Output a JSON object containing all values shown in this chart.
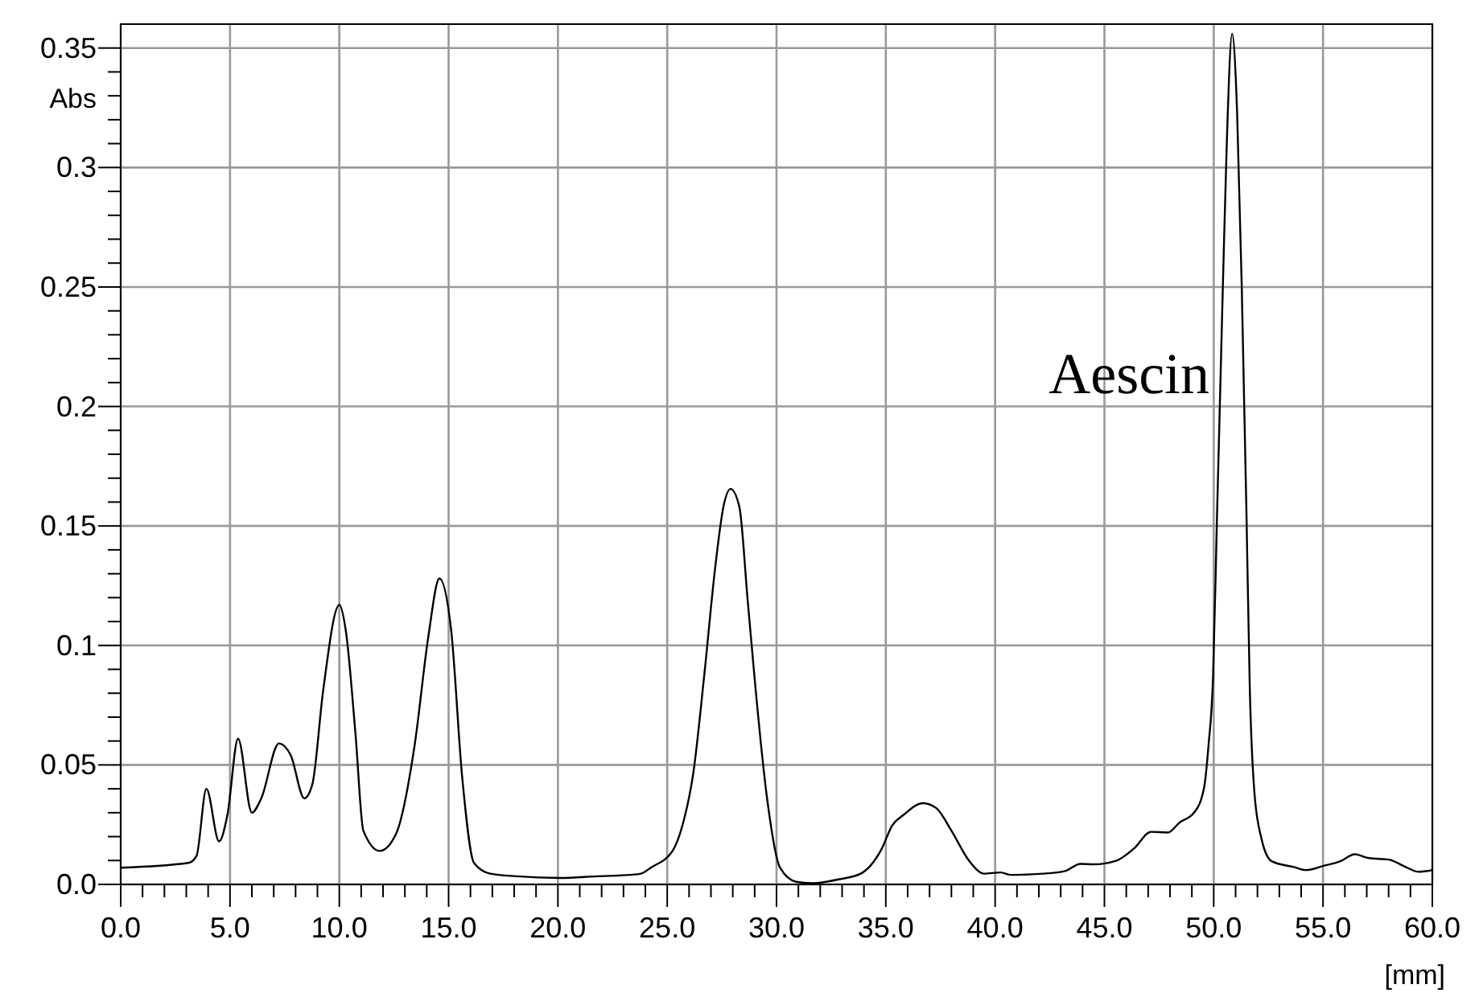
{
  "chart_data": {
    "type": "line",
    "xlabel": "[mm]",
    "ylabel": "Abs",
    "annotations": [
      "Aescin"
    ],
    "xlim": [
      0,
      60
    ],
    "ylim": [
      0,
      0.36
    ],
    "xticks": [
      {
        "value": 0,
        "label": "0.0"
      },
      {
        "value": 1,
        "label": null
      },
      {
        "value": 2,
        "label": null
      },
      {
        "value": 3,
        "label": null
      },
      {
        "value": 4,
        "label": null
      },
      {
        "value": 5,
        "label": "5.0"
      },
      {
        "value": 6,
        "label": null
      },
      {
        "value": 7,
        "label": null
      },
      {
        "value": 8,
        "label": null
      },
      {
        "value": 9,
        "label": null
      },
      {
        "value": 10,
        "label": "10.0"
      },
      {
        "value": 11,
        "label": null
      },
      {
        "value": 12,
        "label": null
      },
      {
        "value": 13,
        "label": null
      },
      {
        "value": 14,
        "label": null
      },
      {
        "value": 15,
        "label": "15.0"
      },
      {
        "value": 16,
        "label": null
      },
      {
        "value": 17,
        "label": null
      },
      {
        "value": 18,
        "label": null
      },
      {
        "value": 19,
        "label": null
      },
      {
        "value": 20,
        "label": "20.0"
      },
      {
        "value": 21,
        "label": null
      },
      {
        "value": 22,
        "label": null
      },
      {
        "value": 23,
        "label": null
      },
      {
        "value": 24,
        "label": null
      },
      {
        "value": 25,
        "label": "25.0"
      },
      {
        "value": 26,
        "label": null
      },
      {
        "value": 27,
        "label": null
      },
      {
        "value": 28,
        "label": null
      },
      {
        "value": 29,
        "label": null
      },
      {
        "value": 30,
        "label": "30.0"
      },
      {
        "value": 31,
        "label": null
      },
      {
        "value": 32,
        "label": null
      },
      {
        "value": 33,
        "label": null
      },
      {
        "value": 34,
        "label": null
      },
      {
        "value": 35,
        "label": "35.0"
      },
      {
        "value": 36,
        "label": null
      },
      {
        "value": 37,
        "label": null
      },
      {
        "value": 38,
        "label": null
      },
      {
        "value": 39,
        "label": null
      },
      {
        "value": 40,
        "label": "40.0"
      },
      {
        "value": 41,
        "label": null
      },
      {
        "value": 42,
        "label": null
      },
      {
        "value": 43,
        "label": null
      },
      {
        "value": 44,
        "label": null
      },
      {
        "value": 45,
        "label": "45.0"
      },
      {
        "value": 46,
        "label": null
      },
      {
        "value": 47,
        "label": null
      },
      {
        "value": 48,
        "label": null
      },
      {
        "value": 49,
        "label": null
      },
      {
        "value": 50,
        "label": "50.0"
      },
      {
        "value": 51,
        "label": null
      },
      {
        "value": 52,
        "label": null
      },
      {
        "value": 53,
        "label": null
      },
      {
        "value": 54,
        "label": null
      },
      {
        "value": 55,
        "label": "55.0"
      },
      {
        "value": 56,
        "label": null
      },
      {
        "value": 57,
        "label": null
      },
      {
        "value": 58,
        "label": null
      },
      {
        "value": 59,
        "label": null
      },
      {
        "value": 60,
        "label": "60.0"
      }
    ],
    "yticks": [
      {
        "value": 0,
        "label": "0.0"
      },
      {
        "value": 0.01,
        "label": null
      },
      {
        "value": 0.02,
        "label": null
      },
      {
        "value": 0.03,
        "label": null
      },
      {
        "value": 0.04,
        "label": null
      },
      0.05,
      {
        "value": 0.06,
        "label": null
      },
      {
        "value": 0.07,
        "label": null
      },
      {
        "value": 0.08,
        "label": null
      },
      {
        "value": 0.09,
        "label": null
      },
      0.1,
      {
        "value": 0.11,
        "label": null
      },
      {
        "value": 0.12,
        "label": null
      },
      {
        "value": 0.13,
        "label": null
      },
      {
        "value": 0.14,
        "label": null
      },
      0.15,
      {
        "value": 0.16,
        "label": null
      },
      {
        "value": 0.17,
        "label": null
      },
      {
        "value": 0.18,
        "label": null
      },
      {
        "value": 0.19,
        "label": null
      },
      0.2,
      {
        "value": 0.21,
        "label": null
      },
      {
        "value": 0.22,
        "label": null
      },
      {
        "value": 0.23,
        "label": null
      },
      {
        "value": 0.24,
        "label": null
      },
      0.25,
      {
        "value": 0.26,
        "label": null
      },
      {
        "value": 0.27,
        "label": null
      },
      {
        "value": 0.28,
        "label": null
      },
      {
        "value": 0.29,
        "label": null
      },
      0.3,
      {
        "value": 0.31,
        "label": null
      },
      {
        "value": 0.32,
        "label": null
      },
      {
        "value": 0.33,
        "label": null
      },
      {
        "value": 0.34,
        "label": null
      },
      0.35
    ],
    "grid": true,
    "marker": "none",
    "line_style": "solid",
    "series": [
      {
        "color": "#000000",
        "x": [
          0,
          3.1,
          3.47,
          3.92,
          4.5,
          4.88,
          5.37,
          6.0,
          6.43,
          7.24,
          7.78,
          8.4,
          8.77,
          9.26,
          10.0,
          10.3,
          10.74,
          11.1,
          11.85,
          12.59,
          13.45,
          14.07,
          14.58,
          15.12,
          15.62,
          16.16,
          16.9,
          18.1,
          20.1,
          21.8,
          23.3,
          23.8,
          24.25,
          25.25,
          25.7,
          26.2,
          26.7,
          27.2,
          27.57,
          27.9,
          28.3,
          28.68,
          29.05,
          29.54,
          30.16,
          30.9,
          31.6,
          32.9,
          33.85,
          34.8,
          35.3,
          35.8,
          36.7,
          37.3,
          38.0,
          38.8,
          39.5,
          40.25,
          40.7,
          42.2,
          43.2,
          43.9,
          44.5,
          45.56,
          46.35,
          47.13,
          47.9,
          48.45,
          49.1,
          49.55,
          49.76,
          49.97,
          50.15,
          50.42,
          50.6,
          50.84,
          51.07,
          51.28,
          51.5,
          51.65,
          51.86,
          52.18,
          52.65,
          53.7,
          54.22,
          55.0,
          55.8,
          56.45,
          57.1,
          58.0,
          58.8,
          59.35,
          60
        ],
        "values": [
          0.007,
          0.009,
          0.012,
          0.04,
          0.018,
          0.029,
          0.061,
          0.03,
          0.036,
          0.059,
          0.054,
          0.036,
          0.042,
          0.081,
          0.117,
          0.106,
          0.063,
          0.0225,
          0.014,
          0.021,
          0.0585,
          0.1035,
          0.128,
          0.106,
          0.045,
          0.009,
          0.0045,
          0.0034,
          0.0027,
          0.0034,
          0.004,
          0.0045,
          0.007,
          0.0141,
          0.0248,
          0.047,
          0.088,
          0.133,
          0.158,
          0.1655,
          0.158,
          0.119,
          0.081,
          0.038,
          0.007,
          0.0011,
          0.0005,
          0.0022,
          0.0045,
          0.0147,
          0.0248,
          0.029,
          0.034,
          0.032,
          0.0225,
          0.01,
          0.0045,
          0.005,
          0.004,
          0.0045,
          0.0056,
          0.0086,
          0.0084,
          0.01,
          0.015,
          0.022,
          0.0217,
          0.026,
          0.03,
          0.04,
          0.058,
          0.087,
          0.154,
          0.251,
          0.311,
          0.356,
          0.323,
          0.251,
          0.154,
          0.082,
          0.0386,
          0.0193,
          0.0097,
          0.0072,
          0.006,
          0.0077,
          0.0097,
          0.0126,
          0.011,
          0.0104,
          0.0072,
          0.0053,
          0.006
        ]
      }
    ]
  }
}
